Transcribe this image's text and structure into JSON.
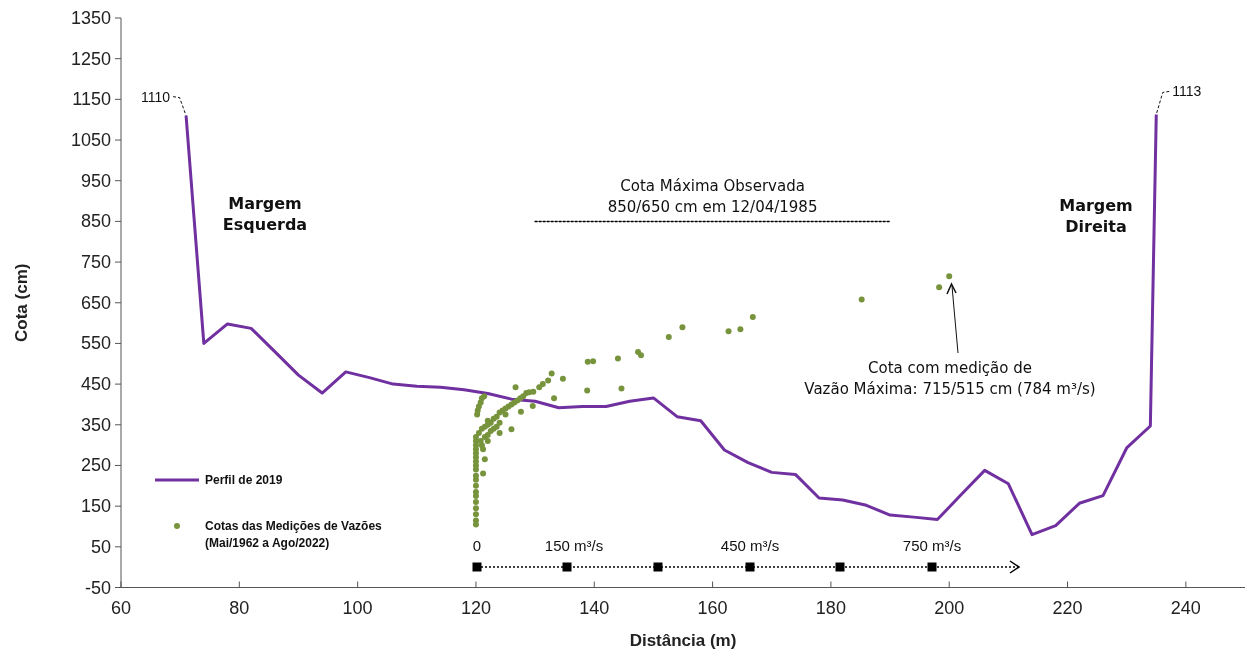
{
  "chart_data": {
    "type": "line",
    "xlabel": "Distância (m)",
    "ylabel": "Cota (cm)",
    "xlim": [
      60,
      250
    ],
    "xticks": [
      60,
      80,
      100,
      120,
      140,
      160,
      180,
      200,
      220,
      240
    ],
    "ylim": [
      -50,
      1350
    ],
    "yticks": [
      -50,
      50,
      150,
      250,
      350,
      450,
      550,
      650,
      750,
      850,
      950,
      1050,
      1150,
      1250,
      1350
    ],
    "legend": "bottom left",
    "marker": "none",
    "line_style": "solid",
    "series": [
      {
        "name": "Perfil de 2019",
        "color": "#7030a0",
        "x": [
          71,
          74,
          78,
          82,
          86,
          90,
          94,
          98,
          102,
          106,
          110,
          114,
          118,
          122,
          126,
          130,
          134,
          138,
          142,
          146,
          150,
          154,
          158,
          162,
          166,
          170,
          174,
          178,
          182,
          186,
          190,
          194,
          198,
          202,
          206,
          210,
          214,
          218,
          222,
          226,
          230,
          234,
          235
        ],
        "values": [
          1110,
          550,
          598,
          587,
          530,
          472,
          428,
          480,
          466,
          450,
          445,
          442,
          436,
          427,
          413,
          408,
          392,
          395,
          395,
          408,
          416,
          370,
          360,
          288,
          257,
          233,
          228,
          170,
          165,
          152,
          128,
          123,
          117,
          178,
          238,
          205,
          80,
          102,
          157,
          176,
          293,
          347,
          1113
        ]
      },
      {
        "name": "Cotas das Medições de Vazões\n(Mai/1962 a Ago/2022)",
        "type": "scatter",
        "marker": "circle",
        "color": "#77933c",
        "x": [
          120,
          120,
          120,
          120,
          120,
          120,
          120,
          120,
          120,
          120,
          120,
          120,
          120,
          120,
          120,
          120,
          120,
          120,
          120,
          120.2,
          120.3,
          120.5,
          120.8,
          121,
          121.4,
          120.5,
          121,
          121.5,
          122,
          122.5,
          122,
          123,
          123.5,
          124,
          124.5,
          125,
          125.5,
          126,
          126.5,
          127,
          127.5,
          128,
          128.5,
          129,
          121,
          121.2,
          120.8,
          121.5,
          122,
          122.5,
          123,
          121.5,
          121.2,
          122,
          123.5,
          124,
          125,
          124,
          126,
          126.7,
          127.6,
          129.6,
          129.7,
          130.7,
          131.3,
          132.2,
          132.8,
          133.2,
          134.7,
          138.8,
          138.9,
          139.8,
          144,
          144.6,
          147.4,
          147.9,
          152.6,
          154.9,
          162.7,
          164.7,
          166.8,
          185.2,
          198.3,
          200
        ],
        "values": [
          105,
          115,
          130,
          145,
          160,
          175,
          185,
          200,
          215,
          225,
          240,
          250,
          260,
          270,
          280,
          290,
          300,
          310,
          320,
          375,
          385,
          395,
          405,
          415,
          420,
          330,
          340,
          345,
          350,
          355,
          360,
          365,
          370,
          380,
          385,
          390,
          395,
          400,
          405,
          410,
          415,
          420,
          428,
          430,
          300,
          290,
          310,
          320,
          325,
          335,
          340,
          265,
          230,
          310,
          345,
          355,
          375,
          330,
          339,
          442,
          382,
          396,
          431,
          442,
          450,
          459,
          476,
          415,
          463,
          434,
          505,
          506,
          513,
          439,
          529,
          521,
          566,
          590,
          580,
          585,
          615,
          658,
          688,
          715
        ]
      },
      {
        "color": "#000000",
        "line_style": "dotted",
        "x": [
          130,
          190
        ],
        "values": [
          850,
          850
        ]
      }
    ],
    "annotations": [
      {
        "text": "1110",
        "x": 71,
        "y": 1110
      },
      {
        "text": "1113",
        "x": 235,
        "y": 1113
      },
      "Margem\nEsquerda",
      "Margem\nDireita",
      {
        "text": "Cota Máxima Observada\n850/650 cm em 12/04/1985",
        "x": 160,
        "y": 850
      },
      "Cota com medição de\nVazão Máxima: 715/515 cm (784 m³/s)",
      "0",
      "150 m³/s",
      "450 m³/s",
      "750 m³/s"
    ]
  }
}
